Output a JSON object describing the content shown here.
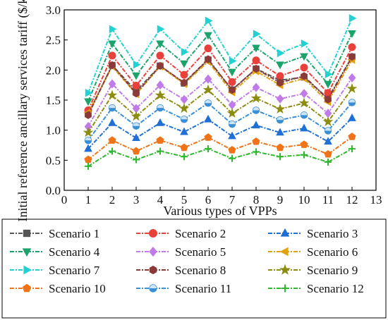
{
  "chart_data": {
    "type": "line",
    "xlabel": "Various types of VPPs",
    "ylabel": "Initial reference ancillary services tariff ($/kW)",
    "x": [
      1,
      2,
      3,
      4,
      5,
      6,
      7,
      8,
      9,
      10,
      11,
      12
    ],
    "xlim": [
      0,
      13
    ],
    "ylim": [
      0.0,
      3.0
    ],
    "x_ticks": [
      "0",
      "1",
      "2",
      "3",
      "4",
      "5",
      "6",
      "7",
      "8",
      "9",
      "10",
      "11",
      "12",
      "13"
    ],
    "y_ticks": [
      "0.0",
      "0.5",
      "1.0",
      "1.5",
      "2.0",
      "2.5",
      "3.0"
    ],
    "grid": false,
    "legend_position": "bottom",
    "series": [
      {
        "name": "Scenario 1",
        "color": "#555555",
        "marker": "square",
        "values": [
          1.27,
          2.08,
          1.65,
          2.07,
          1.78,
          2.17,
          1.67,
          2.02,
          1.83,
          1.88,
          1.53,
          2.22
        ]
      },
      {
        "name": "Scenario 2",
        "color": "#e8413c",
        "marker": "circle",
        "values": [
          1.33,
          2.24,
          1.74,
          2.24,
          1.92,
          2.36,
          1.8,
          2.16,
          1.9,
          2.04,
          1.62,
          2.38
        ]
      },
      {
        "name": "Scenario 3",
        "color": "#1f6fd6",
        "marker": "triangle-up",
        "values": [
          0.69,
          1.12,
          0.87,
          1.12,
          0.97,
          1.18,
          0.9,
          1.08,
          0.96,
          1.03,
          0.81,
          1.2
        ]
      },
      {
        "name": "Scenario 4",
        "color": "#1aa36a",
        "marker": "triangle-down",
        "values": [
          1.48,
          2.44,
          1.91,
          2.44,
          2.11,
          2.58,
          1.97,
          2.37,
          2.09,
          2.23,
          1.77,
          2.61
        ]
      },
      {
        "name": "Scenario 5",
        "color": "#c07be8",
        "marker": "diamond",
        "values": [
          1.06,
          1.77,
          1.36,
          1.75,
          1.51,
          1.85,
          1.42,
          1.71,
          1.52,
          1.61,
          1.28,
          1.87
        ]
      },
      {
        "name": "Scenario 6",
        "color": "#e0a010",
        "marker": "triangle-left",
        "values": [
          1.29,
          2.06,
          1.6,
          2.06,
          1.77,
          2.14,
          1.63,
          1.98,
          1.75,
          1.86,
          1.47,
          2.17
        ]
      },
      {
        "name": "Scenario 7",
        "color": "#22d2d2",
        "marker": "triangle-right",
        "values": [
          1.62,
          2.68,
          2.09,
          2.68,
          2.3,
          2.82,
          2.15,
          2.6,
          2.28,
          2.44,
          1.93,
          2.86
        ]
      },
      {
        "name": "Scenario 8",
        "color": "#8b3a3a",
        "marker": "hexagon",
        "values": [
          1.25,
          2.08,
          1.61,
          2.07,
          1.79,
          2.18,
          1.67,
          2.02,
          1.79,
          1.9,
          1.51,
          2.22
        ]
      },
      {
        "name": "Scenario 9",
        "color": "#8c8c10",
        "marker": "star",
        "values": [
          0.96,
          1.58,
          1.23,
          1.58,
          1.36,
          1.67,
          1.28,
          1.53,
          1.35,
          1.45,
          1.14,
          1.69
        ]
      },
      {
        "name": "Scenario 10",
        "color": "#ef7318",
        "marker": "pentagon",
        "values": [
          0.51,
          0.83,
          0.65,
          0.83,
          0.71,
          0.88,
          0.67,
          0.81,
          0.71,
          0.76,
          0.6,
          0.89
        ]
      },
      {
        "name": "Scenario 11",
        "color": "#3a8fd6",
        "marker": "circle-half",
        "values": [
          0.83,
          1.37,
          1.07,
          1.37,
          1.18,
          1.45,
          1.1,
          1.33,
          1.17,
          1.25,
          0.99,
          1.46
        ]
      },
      {
        "name": "Scenario 12",
        "color": "#2eb82e",
        "marker": "plus",
        "values": [
          0.4,
          0.65,
          0.51,
          0.65,
          0.56,
          0.69,
          0.53,
          0.64,
          0.56,
          0.59,
          0.47,
          0.69
        ]
      }
    ]
  }
}
